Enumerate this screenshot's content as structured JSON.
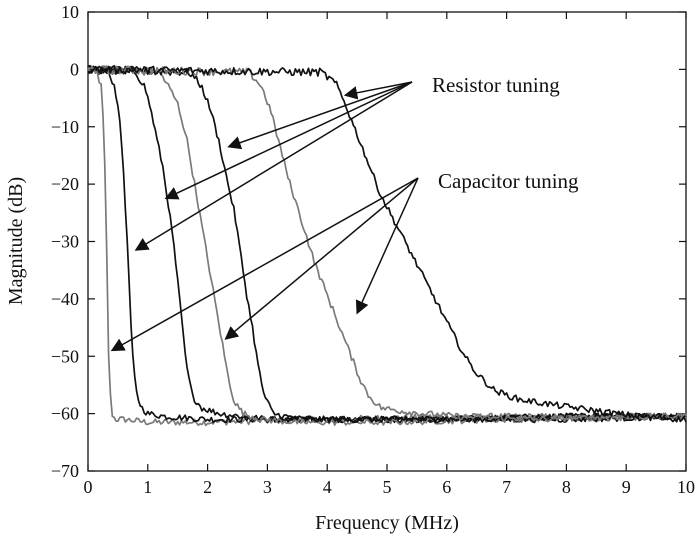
{
  "chart_data": {
    "type": "line",
    "title": "",
    "xlabel": "Frequency (MHz)",
    "ylabel": "Magnitude (dB)",
    "xlim": [
      0,
      10
    ],
    "ylim": [
      -70,
      10
    ],
    "xticks": [
      0,
      1,
      2,
      3,
      4,
      5,
      6,
      7,
      8,
      9,
      10
    ],
    "yticks": [
      10,
      0,
      -10,
      -20,
      -30,
      -40,
      -50,
      -60,
      -70
    ],
    "grid": false,
    "legend": "none",
    "series": [
      {
        "color": "#7a7a7a",
        "x": [
          0,
          0.15,
          0.22,
          0.26,
          0.29,
          0.31,
          0.33,
          0.36,
          0.4,
          0.45,
          0.6,
          1.0,
          2.0,
          4.0,
          6.0,
          8.0,
          10.0
        ],
        "y": [
          0,
          -0.5,
          -3,
          -10,
          -20,
          -30,
          -45,
          -55,
          -60,
          -61,
          -61,
          -61.5,
          -61.5,
          -61,
          -60.5,
          -60.5,
          -60.5
        ]
      },
      {
        "color": "#111111",
        "x": [
          0,
          0.3,
          0.42,
          0.5,
          0.58,
          0.63,
          0.68,
          0.72,
          0.76,
          0.82,
          0.9,
          1.0,
          1.3,
          2.0,
          4.0,
          6.0,
          8.0,
          10.0
        ],
        "y": [
          0,
          -0.5,
          -2,
          -6,
          -15,
          -25,
          -35,
          -45,
          -52,
          -57,
          -59,
          -60,
          -60.5,
          -61,
          -61,
          -61,
          -60.5,
          -60.5
        ]
      },
      {
        "color": "#111111",
        "x": [
          0,
          0.8,
          0.95,
          1.05,
          1.15,
          1.25,
          1.35,
          1.45,
          1.55,
          1.65,
          1.75,
          1.9,
          2.2,
          3.0,
          4.0,
          6.0,
          8.0,
          10.0
        ],
        "y": [
          0,
          -0.5,
          -3,
          -7,
          -12,
          -17,
          -24,
          -32,
          -42,
          -52,
          -57,
          -59,
          -60,
          -61,
          -61,
          -61,
          -60.5,
          -60.5
        ]
      },
      {
        "color": "#7a7a7a",
        "x": [
          0,
          1.2,
          1.35,
          1.5,
          1.65,
          1.75,
          1.85,
          1.95,
          2.05,
          2.15,
          2.25,
          2.35,
          2.45,
          2.6,
          2.9,
          3.5,
          5.0,
          7.0,
          10.0
        ],
        "y": [
          0,
          -0.5,
          -3,
          -6,
          -12,
          -18,
          -24,
          -30,
          -36,
          -42,
          -48,
          -54,
          -58,
          -60,
          -61,
          -61.5,
          -61.5,
          -61,
          -60.5
        ]
      },
      {
        "color": "#111111",
        "x": [
          0,
          1.7,
          1.9,
          2.05,
          2.2,
          2.3,
          2.45,
          2.55,
          2.65,
          2.75,
          2.85,
          2.95,
          3.1,
          3.3,
          3.6,
          4.5,
          6.0,
          8.0,
          10.0
        ],
        "y": [
          0,
          -0.5,
          -3,
          -7,
          -13,
          -18,
          -25,
          -32,
          -39,
          -45,
          -52,
          -57,
          -60,
          -60.5,
          -61,
          -61,
          -61,
          -61,
          -60.5
        ]
      },
      {
        "color": "#7a7a7a",
        "x": [
          0,
          2.7,
          2.9,
          3.05,
          3.2,
          3.35,
          3.5,
          3.65,
          3.8,
          3.95,
          4.1,
          4.25,
          4.4,
          4.55,
          4.7,
          4.9,
          5.2,
          5.6,
          6.2,
          7.5,
          9.0,
          10.0
        ],
        "y": [
          0,
          -0.5,
          -3,
          -7,
          -13,
          -19,
          -24,
          -29,
          -34,
          -38,
          -42,
          -46,
          -50,
          -54,
          -57,
          -59,
          -59.5,
          -60,
          -60.5,
          -61,
          -60.5,
          -60.5
        ]
      },
      {
        "color": "#111111",
        "x": [
          0,
          3.9,
          4.15,
          4.3,
          4.45,
          4.6,
          4.75,
          4.9,
          5.05,
          5.2,
          5.35,
          5.5,
          5.7,
          5.9,
          6.1,
          6.3,
          6.5,
          6.8,
          7.2,
          7.8,
          8.5,
          9.2,
          10.0
        ],
        "y": [
          0,
          -0.5,
          -2.5,
          -6,
          -10,
          -14,
          -18,
          -22,
          -25,
          -28,
          -31,
          -34,
          -38,
          -42,
          -46,
          -50,
          -53,
          -56,
          -57.5,
          -58.5,
          -59.5,
          -60.5,
          -61
        ]
      }
    ],
    "annotations": [
      {
        "text": "Resistor tuning",
        "targets": [
          [
            4.3,
            -4.5
          ],
          [
            2.35,
            -13.5
          ],
          [
            1.3,
            -22.5
          ],
          [
            0.8,
            -31.5
          ]
        ]
      },
      {
        "text": "Capacitor tuning",
        "targets": [
          [
            4.5,
            -42.5
          ],
          [
            2.3,
            -47
          ],
          [
            0.4,
            -49
          ]
        ]
      }
    ]
  }
}
